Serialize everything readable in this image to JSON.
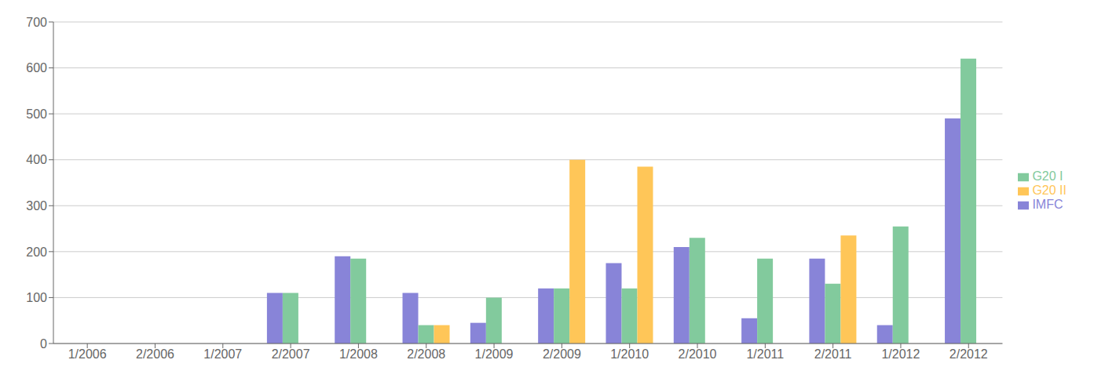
{
  "chart_data": {
    "type": "bar",
    "categories": [
      "1/2006",
      "2/2006",
      "1/2007",
      "2/2007",
      "1/2008",
      "2/2008",
      "1/2009",
      "2/2009",
      "1/2010",
      "2/2010",
      "1/2011",
      "2/2011",
      "1/2012",
      "2/2012"
    ],
    "series": [
      {
        "name": "IMFC",
        "color": "#8884d8",
        "values": [
          0,
          0,
          0,
          110,
          190,
          110,
          45,
          120,
          175,
          210,
          55,
          185,
          40,
          490
        ]
      },
      {
        "name": "G20 I",
        "color": "#82ca9d",
        "values": [
          0,
          0,
          0,
          110,
          185,
          40,
          100,
          120,
          120,
          230,
          185,
          130,
          255,
          620
        ]
      },
      {
        "name": "G20 II",
        "color": "#ffc658",
        "values": [
          0,
          0,
          0,
          0,
          0,
          40,
          0,
          400,
          385,
          0,
          0,
          235,
          0,
          0
        ]
      }
    ],
    "ylim": [
      0,
      700
    ],
    "yticks": [
      0,
      100,
      200,
      300,
      400,
      500,
      600,
      700
    ],
    "grid": true,
    "legend": "right"
  }
}
